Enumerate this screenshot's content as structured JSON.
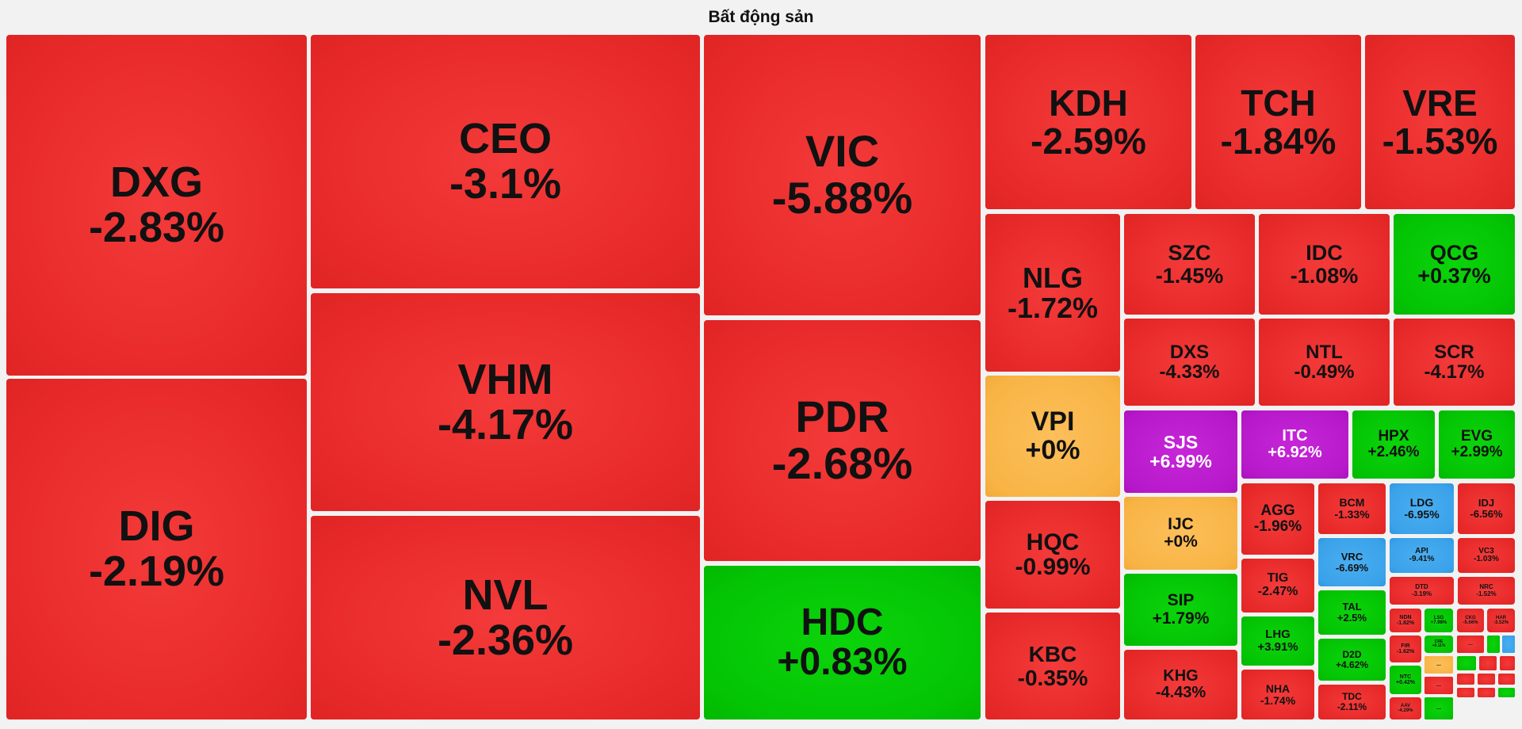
{
  "chart_data": {
    "type": "treemap",
    "title": "Bất động sản",
    "colors": {
      "down": "#e8292b",
      "up": "#05c605",
      "flat": "#f8b445",
      "ceiling": "#b81acb",
      "floor": "#3aa2ea"
    },
    "items": [
      {
        "ticker": "DXG",
        "change": "-2.83%",
        "status": "down"
      },
      {
        "ticker": "DIG",
        "change": "-2.19%",
        "status": "down"
      },
      {
        "ticker": "CEO",
        "change": "-3.1%",
        "status": "down"
      },
      {
        "ticker": "VHM",
        "change": "-4.17%",
        "status": "down"
      },
      {
        "ticker": "NVL",
        "change": "-2.36%",
        "status": "down"
      },
      {
        "ticker": "VIC",
        "change": "-5.88%",
        "status": "down"
      },
      {
        "ticker": "PDR",
        "change": "-2.68%",
        "status": "down"
      },
      {
        "ticker": "HDC",
        "change": "+0.83%",
        "status": "up"
      },
      {
        "ticker": "KDH",
        "change": "-2.59%",
        "status": "down"
      },
      {
        "ticker": "TCH",
        "change": "-1.84%",
        "status": "down"
      },
      {
        "ticker": "VRE",
        "change": "-1.53%",
        "status": "down"
      },
      {
        "ticker": "NLG",
        "change": "-1.72%",
        "status": "down"
      },
      {
        "ticker": "SZC",
        "change": "-1.45%",
        "status": "down"
      },
      {
        "ticker": "IDC",
        "change": "-1.08%",
        "status": "down"
      },
      {
        "ticker": "QCG",
        "change": "+0.37%",
        "status": "up"
      },
      {
        "ticker": "DXS",
        "change": "-4.33%",
        "status": "down"
      },
      {
        "ticker": "NTL",
        "change": "-0.49%",
        "status": "down"
      },
      {
        "ticker": "SCR",
        "change": "-4.17%",
        "status": "down"
      },
      {
        "ticker": "VPI",
        "change": "+0%",
        "status": "flat"
      },
      {
        "ticker": "SJS",
        "change": "+6.99%",
        "status": "ceiling"
      },
      {
        "ticker": "ITC",
        "change": "+6.92%",
        "status": "ceiling"
      },
      {
        "ticker": "HPX",
        "change": "+2.46%",
        "status": "up"
      },
      {
        "ticker": "EVG",
        "change": "+2.99%",
        "status": "up"
      },
      {
        "ticker": "HQC",
        "change": "-0.99%",
        "status": "down"
      },
      {
        "ticker": "IJC",
        "change": "+0%",
        "status": "flat"
      },
      {
        "ticker": "AGG",
        "change": "-1.96%",
        "status": "down"
      },
      {
        "ticker": "BCM",
        "change": "-1.33%",
        "status": "down"
      },
      {
        "ticker": "LDG",
        "change": "-6.95%",
        "status": "floor"
      },
      {
        "ticker": "IDJ",
        "change": "-6.56%",
        "status": "down"
      },
      {
        "ticker": "VRC",
        "change": "-6.69%",
        "status": "floor"
      },
      {
        "ticker": "API",
        "change": "-9.41%",
        "status": "floor"
      },
      {
        "ticker": "VC3",
        "change": "-1.03%",
        "status": "down"
      },
      {
        "ticker": "KBC",
        "change": "-0.35%",
        "status": "down"
      },
      {
        "ticker": "SIP",
        "change": "+1.79%",
        "status": "up"
      },
      {
        "ticker": "TIG",
        "change": "-2.47%",
        "status": "down"
      },
      {
        "ticker": "TAL",
        "change": "+2.5%",
        "status": "up"
      },
      {
        "ticker": "DTD",
        "change": "-3.19%",
        "status": "down"
      },
      {
        "ticker": "NRC",
        "change": "-1.52%",
        "status": "down"
      },
      {
        "ticker": "LHG",
        "change": "+3.91%",
        "status": "up"
      },
      {
        "ticker": "D2D",
        "change": "+4.62%",
        "status": "up"
      },
      {
        "ticker": "NDN",
        "change": "-1.82%",
        "status": "down"
      },
      {
        "ticker": "LSG",
        "change": "+7.98%",
        "status": "up"
      },
      {
        "ticker": "CKG",
        "change": "-5.66%",
        "status": "down"
      },
      {
        "ticker": "HAR",
        "change": "-3.52%",
        "status": "down"
      },
      {
        "ticker": "KHG",
        "change": "-4.43%",
        "status": "down"
      },
      {
        "ticker": "NHA",
        "change": "-1.74%",
        "status": "down"
      },
      {
        "ticker": "TDC",
        "change": "-2.11%",
        "status": "down"
      },
      {
        "ticker": "FIR",
        "change": "-1.62%",
        "status": "down"
      },
      {
        "ticker": "CRE",
        "change": "+0.11%",
        "status": "up"
      },
      {
        "ticker": "NTC",
        "change": "+0.42%",
        "status": "up"
      },
      {
        "ticker": "AAV",
        "change": "-4.29%",
        "status": "down"
      }
    ],
    "minor_tiles": [
      {
        "label": "...",
        "status": "down"
      },
      {
        "label": "",
        "status": "up"
      },
      {
        "label": "",
        "status": "up"
      },
      {
        "label": "",
        "status": "floor"
      },
      {
        "label": "...",
        "status": "flat"
      },
      {
        "label": "",
        "status": "up"
      },
      {
        "label": "",
        "status": "down"
      },
      {
        "label": "",
        "status": "down"
      },
      {
        "label": "...",
        "status": "down"
      },
      {
        "label": "",
        "status": "down"
      },
      {
        "label": "",
        "status": "down"
      },
      {
        "label": "",
        "status": "down"
      },
      {
        "label": "...",
        "status": "up"
      },
      {
        "label": "",
        "status": "down"
      },
      {
        "label": "",
        "status": "down"
      },
      {
        "label": "",
        "status": "up"
      }
    ]
  }
}
